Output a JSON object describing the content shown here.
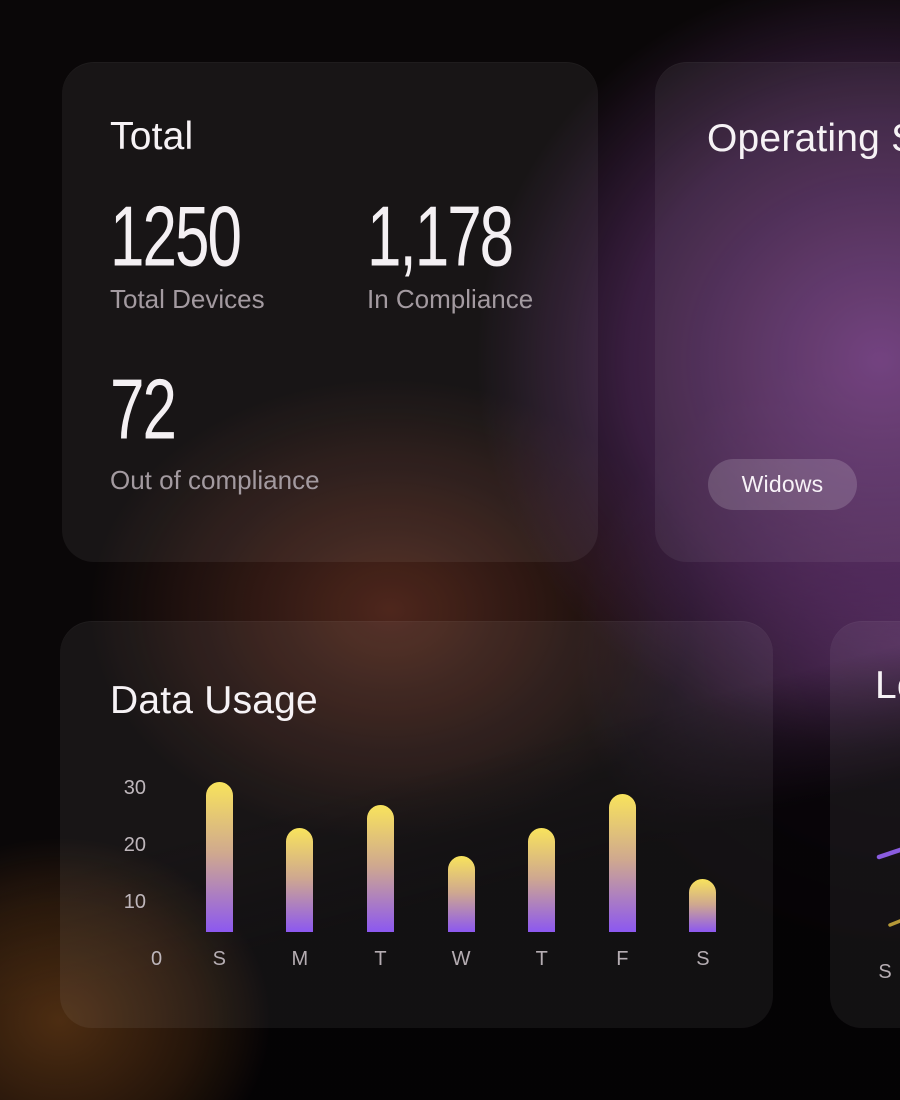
{
  "theme": {
    "background_base": "#0a0708",
    "glow_purple": "#6e3c7e",
    "glow_orange": "#ba6c26",
    "glow_red_brown": "#ac5238",
    "card_overlay": "rgba(255,255,255,0.06)",
    "bar_gradient_top": "#f8e35c",
    "bar_gradient_bottom": "#8c58f0",
    "line_purple": "#8a5ce0",
    "line_yellow": "#c9a83c"
  },
  "cards": {
    "total": {
      "title": "Total",
      "stats": [
        {
          "value": "1250",
          "label": "Total Devices"
        },
        {
          "value": "1,178",
          "label": "In Compliance"
        },
        {
          "value": "72",
          "label": "Out of compliance"
        }
      ]
    },
    "operating_systems": {
      "title": "Operating Systems",
      "badges": [
        "Widows"
      ]
    },
    "data_usage": {
      "title": "Data Usage"
    },
    "line_panel": {
      "title": "Location"
    }
  },
  "chart_data": [
    {
      "type": "bar",
      "title": "Data Usage",
      "categories": [
        "S",
        "M",
        "T",
        "W",
        "T",
        "F",
        "S"
      ],
      "values": [
        31,
        23,
        27,
        18,
        23,
        29,
        14
      ],
      "yticks": [
        0,
        10,
        20,
        30
      ],
      "ylim": [
        0,
        32
      ],
      "xlabel": "",
      "ylabel": "",
      "grid": false,
      "legend": "none",
      "bar_gradient": [
        "#f8e35c",
        "#8c58f0"
      ]
    },
    {
      "type": "line",
      "title": "Location",
      "x_visible": [
        "S"
      ],
      "series": [
        {
          "name": "series-purple",
          "color": "#8a5ce0"
        },
        {
          "name": "series-yellow",
          "color": "#c9a83c"
        }
      ],
      "note": "chart mostly cropped by right edge of viewport; only two short line segments visible"
    }
  ]
}
